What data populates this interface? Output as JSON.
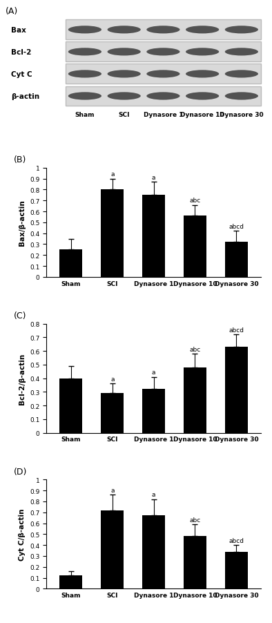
{
  "blot": {
    "title": "(A)",
    "rows": [
      "Bax",
      "Bcl-2",
      "Cyt C",
      "β-actin"
    ],
    "lanes": [
      "Sham",
      "SCI",
      "Dynasore 1",
      "Dynasore 10",
      "Dynasore 30"
    ]
  },
  "chart_data": [
    {
      "type": "bar",
      "title": "(B)",
      "y_label": "Bax/β-actin",
      "categories": [
        "Sham",
        "SCI",
        "Dynasore 1",
        "Dynasore 10",
        "Dynasore 30"
      ],
      "values": [
        0.25,
        0.8,
        0.75,
        0.56,
        0.32
      ],
      "errors": [
        0.1,
        0.1,
        0.12,
        0.1,
        0.1
      ],
      "annotations": [
        null,
        "a",
        "a",
        "abc",
        "abcd"
      ],
      "color": "#000000",
      "ylim": [
        0,
        1
      ],
      "yticks": [
        0,
        0.1,
        0.2,
        0.3,
        0.4,
        0.5,
        0.6,
        0.7,
        0.8,
        0.9,
        1
      ]
    },
    {
      "type": "bar",
      "title": "(C)",
      "y_label": "Bcl-2/β-actin",
      "categories": [
        "Sham",
        "SCI",
        "Dynasore 1",
        "Dynasore 10",
        "Dynasore 30"
      ],
      "values": [
        0.4,
        0.29,
        0.32,
        0.48,
        0.63
      ],
      "errors": [
        0.09,
        0.07,
        0.09,
        0.1,
        0.09
      ],
      "annotations": [
        null,
        "a",
        "a",
        "abc",
        "abcd"
      ],
      "color": "#000000",
      "ylim": [
        0,
        0.8
      ],
      "yticks": [
        0,
        0.1,
        0.2,
        0.3,
        0.4,
        0.5,
        0.6,
        0.7,
        0.8
      ]
    },
    {
      "type": "bar",
      "title": "(D)",
      "y_label": "Cyt C/β-actin",
      "categories": [
        "Sham",
        "SCI",
        "Dynasore 1",
        "Dynasore 10",
        "Dynasore 30"
      ],
      "values": [
        0.12,
        0.72,
        0.67,
        0.48,
        0.34
      ],
      "errors": [
        0.04,
        0.14,
        0.15,
        0.11,
        0.06
      ],
      "annotations": [
        null,
        "a",
        "a",
        "abc",
        "abcd"
      ],
      "color": "#000000",
      "ylim": [
        0,
        1
      ],
      "yticks": [
        0,
        0.1,
        0.2,
        0.3,
        0.4,
        0.5,
        0.6,
        0.7,
        0.8,
        0.9,
        1
      ]
    }
  ]
}
